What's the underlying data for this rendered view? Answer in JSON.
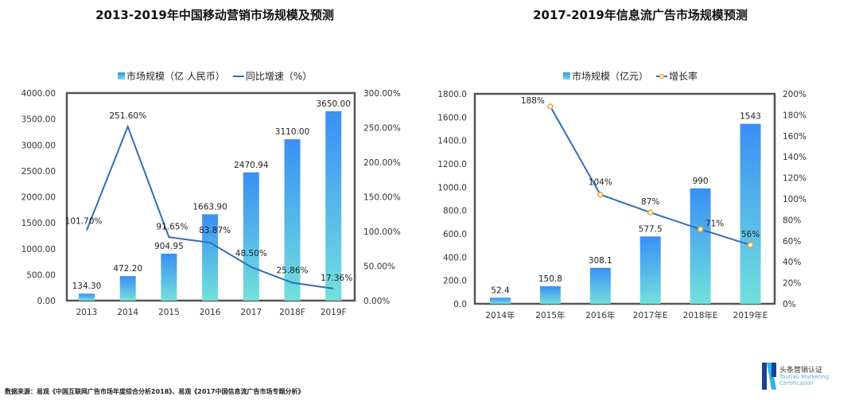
{
  "chart_data": [
    {
      "type": "bar",
      "title": "2013-2019年中国移动营销市场规模及预测",
      "legend": [
        "市场规模（亿 人民币）",
        "同比增速（%）"
      ],
      "categories": [
        "2013",
        "2014",
        "2015",
        "2016",
        "2017",
        "2018F",
        "2019F"
      ],
      "series": [
        {
          "name": "市场规模（亿 人民币）",
          "type": "bar",
          "values": [
            134.3,
            472.2,
            904.95,
            1663.9,
            2470.94,
            3110.0,
            3650.0
          ],
          "labels": [
            "134.30",
            "472.20",
            "904.95",
            "1663.90",
            "2470.94",
            "3110.00",
            "3650.00"
          ]
        },
        {
          "name": "同比增速（%）",
          "type": "line",
          "axis": "right",
          "values": [
            101.7,
            251.6,
            91.65,
            83.87,
            48.5,
            25.86,
            17.36
          ],
          "labels": [
            "101.70%",
            "251.60%",
            "91.65%",
            "83.87%",
            "48.50%",
            "25.86%",
            "17.36%"
          ]
        }
      ],
      "ylim": [
        0,
        4000
      ],
      "yticks": [
        "0.00",
        "500.00",
        "1000.00",
        "1500.00",
        "2000.00",
        "2500.00",
        "3000.00",
        "3500.00",
        "4000.00"
      ],
      "y2lim": [
        0,
        300
      ],
      "y2ticks": [
        "0.00%",
        "50.00%",
        "100.00%",
        "150.00%",
        "200.00%",
        "250.00%",
        "300.00%"
      ],
      "legend_position": "top"
    },
    {
      "type": "bar",
      "title": "2017-2019年信息流广告市场规模预测",
      "legend": [
        "市场规模（亿元）",
        "增长率"
      ],
      "categories": [
        "2014年",
        "2015年",
        "2016年",
        "2017年E",
        "2018年E",
        "2019年E"
      ],
      "series": [
        {
          "name": "市场规模（亿元）",
          "type": "bar",
          "values": [
            52.4,
            150.8,
            308.1,
            577.5,
            990,
            1543
          ],
          "labels": [
            "52.4",
            "150.8",
            "308.1",
            "577.5",
            "990",
            "1543"
          ]
        },
        {
          "name": "增长率",
          "type": "line",
          "axis": "right",
          "values": [
            null,
            188,
            104,
            87,
            71,
            56
          ],
          "labels": [
            "",
            "188%",
            "104%",
            "87%",
            "71%",
            "56%"
          ]
        }
      ],
      "ylim": [
        0,
        1800
      ],
      "yticks": [
        "0.0",
        "200.0",
        "400.0",
        "600.0",
        "800.0",
        "1000.0",
        "1200.0",
        "1400.0",
        "1600.0",
        "1800.0"
      ],
      "y2lim": [
        0,
        200
      ],
      "y2ticks": [
        "0%",
        "20%",
        "40%",
        "60%",
        "80%",
        "100%",
        "120%",
        "140%",
        "160%",
        "180%",
        "200%"
      ],
      "legend_position": "top"
    }
  ],
  "footer": {
    "source": "数据来源：易观《中国互联网广告市场年度综合分析2018》、易观《2017中国信息流广告市场专题分析》",
    "logo_cn": "头条营销认证",
    "logo_en": "Toutiao Marketing Certification"
  },
  "colors": {
    "bar_top": "#3a8ff5",
    "bar_bottom": "#72e0dc",
    "line": "#2f6eb5",
    "marker": "#f5a623",
    "frame": "#555555"
  }
}
